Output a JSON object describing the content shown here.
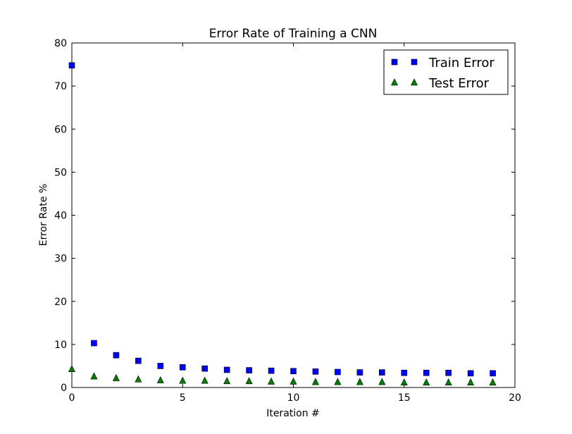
{
  "chart_data": {
    "type": "scatter",
    "title": "Error Rate of Training a CNN",
    "xlabel": "Iteration #",
    "ylabel": "Error Rate %",
    "xlim": [
      0,
      20
    ],
    "ylim": [
      0,
      80
    ],
    "xticks": [
      0,
      5,
      10,
      15,
      20
    ],
    "yticks": [
      0,
      10,
      20,
      30,
      40,
      50,
      60,
      70,
      80
    ],
    "grid": false,
    "legend_position": "top-right",
    "x": [
      0,
      1,
      2,
      3,
      4,
      5,
      6,
      7,
      8,
      9,
      10,
      11,
      12,
      13,
      14,
      15,
      16,
      17,
      18,
      19
    ],
    "series": [
      {
        "name": "Train Error",
        "marker": "square",
        "color": "#0000ff",
        "values": [
          74.8,
          10.3,
          7.5,
          6.2,
          5.0,
          4.7,
          4.4,
          4.1,
          4.0,
          3.9,
          3.8,
          3.7,
          3.6,
          3.5,
          3.5,
          3.4,
          3.4,
          3.4,
          3.3,
          3.3
        ]
      },
      {
        "name": "Test Error",
        "marker": "triangle",
        "color": "#008000",
        "values": [
          4.3,
          2.6,
          2.2,
          1.9,
          1.7,
          1.6,
          1.6,
          1.5,
          1.5,
          1.4,
          1.4,
          1.3,
          1.3,
          1.3,
          1.3,
          1.2,
          1.2,
          1.2,
          1.2,
          1.2
        ]
      }
    ]
  }
}
